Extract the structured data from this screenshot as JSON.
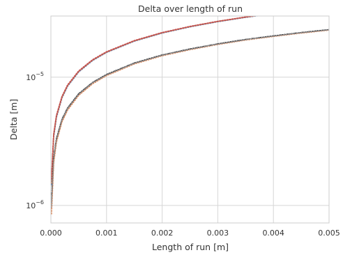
{
  "chart_data": {
    "type": "line",
    "title": "Delta over length of run",
    "xlabel": "Length of run [m]",
    "ylabel": "Delta [m]",
    "xlim": [
      0,
      0.005
    ],
    "ylim": [
      7.3e-07,
      3e-05
    ],
    "yscale": "log",
    "grid": true,
    "x_ticks": [
      {
        "value": 0.0,
        "label": "0.000"
      },
      {
        "value": 0.001,
        "label": "0.001"
      },
      {
        "value": 0.002,
        "label": "0.002"
      },
      {
        "value": 0.003,
        "label": "0.003"
      },
      {
        "value": 0.004,
        "label": "0.004"
      },
      {
        "value": 0.005,
        "label": "0.005"
      }
    ],
    "y_ticks": [
      {
        "value": 1e-06,
        "base": "10",
        "exp": "−6"
      },
      {
        "value": 1e-05,
        "base": "10",
        "exp": "−5"
      }
    ],
    "series": [
      {
        "color": "#222222",
        "style": "solid",
        "x": [
          1e-05,
          5e-05,
          0.0001,
          0.0002,
          0.0003,
          0.0005,
          0.00075,
          0.001,
          0.0015,
          0.002,
          0.0025,
          0.003,
          0.0035,
          0.004,
          0.0045,
          0.005
        ],
        "y": [
          1.55e-06,
          3.55e-06,
          4.99e-06,
          7.04e-06,
          8.61e-06,
          1.11e-05,
          1.36e-05,
          1.57e-05,
          1.92e-05,
          2.22e-05,
          2.48e-05,
          2.72e-05,
          2.94e-05,
          3.14e-05,
          3.33e-05,
          3.51e-05
        ]
      },
      {
        "color": "#4c72b0",
        "style": "dotted",
        "x": [
          1e-05,
          5e-05,
          0.0001,
          0.0002,
          0.0003,
          0.0005,
          0.00075,
          0.001,
          0.0015,
          0.002,
          0.0025,
          0.003,
          0.0035,
          0.004,
          0.0045,
          0.005
        ],
        "y": [
          1.45e-06,
          3.4e-06,
          4.85e-06,
          6.9e-06,
          8.5e-06,
          1.1e-05,
          1.35e-05,
          1.56e-05,
          1.91e-05,
          2.21e-05,
          2.47e-05,
          2.71e-05,
          2.93e-05,
          3.13e-05,
          3.32e-05,
          3.5e-05
        ]
      },
      {
        "color": "#dd8452",
        "style": "dotted",
        "x": [
          1e-05,
          5e-05,
          0.0001,
          0.0002,
          0.0003,
          0.0005,
          0.00075,
          0.001,
          0.0015,
          0.002,
          0.0025,
          0.003,
          0.0035,
          0.004,
          0.0045,
          0.005
        ],
        "y": [
          1.5e-06,
          3.5e-06,
          4.95e-06,
          7e-06,
          8.6e-06,
          1.11e-05,
          1.36e-05,
          1.57e-05,
          1.92e-05,
          2.22e-05,
          2.48e-05,
          2.72e-05,
          2.94e-05,
          3.14e-05,
          3.33e-05,
          3.51e-05
        ]
      },
      {
        "color": "#c44e52",
        "style": "dotted",
        "x": [
          1e-05,
          5e-05,
          0.0001,
          0.0002,
          0.0003,
          0.0005,
          0.00075,
          0.001,
          0.0015,
          0.002,
          0.0025,
          0.003,
          0.0035,
          0.004,
          0.0045,
          0.005
        ],
        "y": [
          1.6e-06,
          3.6e-06,
          5.05e-06,
          7.1e-06,
          8.7e-06,
          1.12e-05,
          1.37e-05,
          1.58e-05,
          1.93e-05,
          2.23e-05,
          2.49e-05,
          2.73e-05,
          2.95e-05,
          3.15e-05,
          3.34e-05,
          3.52e-05
        ]
      },
      {
        "color": "#222222",
        "style": "dashdot",
        "x": [
          1e-05,
          5e-05,
          0.0001,
          0.0002,
          0.0003,
          0.0005,
          0.00075,
          0.001,
          0.0015,
          0.002,
          0.0025,
          0.003,
          0.0035,
          0.004,
          0.0045,
          0.005
        ],
        "y": [
          1.05e-06,
          2.35e-06,
          3.32e-06,
          4.7e-06,
          5.75e-06,
          7.43e-06,
          9.1e-06,
          1.05e-05,
          1.29e-05,
          1.49e-05,
          1.66e-05,
          1.82e-05,
          1.97e-05,
          2.1e-05,
          2.23e-05,
          2.35e-05
        ]
      },
      {
        "color": "#4c72b0",
        "style": "dotted",
        "x": [
          1e-05,
          5e-05,
          0.0001,
          0.0002,
          0.0003,
          0.0005,
          0.00075,
          0.001,
          0.0015,
          0.002,
          0.0025,
          0.003,
          0.0035,
          0.004,
          0.0045,
          0.005
        ],
        "y": [
          9.5e-07,
          2.25e-06,
          3.22e-06,
          4.6e-06,
          5.65e-06,
          7.33e-06,
          9e-06,
          1.04e-05,
          1.28e-05,
          1.48e-05,
          1.65e-05,
          1.81e-05,
          1.96e-05,
          2.09e-05,
          2.22e-05,
          2.34e-05
        ]
      },
      {
        "color": "#dd8452",
        "style": "dotted",
        "x": [
          1e-05,
          5e-05,
          0.0001,
          0.0002,
          0.0003,
          0.0005,
          0.00075,
          0.001,
          0.0015,
          0.002,
          0.0025,
          0.003,
          0.0035,
          0.004,
          0.0045,
          0.005
        ],
        "y": [
          8.6e-07,
          2.15e-06,
          3.12e-06,
          4.5e-06,
          5.55e-06,
          7.23e-06,
          8.9e-06,
          1.03e-05,
          1.27e-05,
          1.47e-05,
          1.64e-05,
          1.8e-05,
          1.95e-05,
          2.08e-05,
          2.21e-05,
          2.33e-05
        ]
      },
      {
        "color": "#8c8c8c",
        "style": "dotted",
        "x": [
          1e-05,
          5e-05,
          0.0001,
          0.0002,
          0.0003,
          0.0005,
          0.00075,
          0.001,
          0.0015,
          0.002,
          0.0025,
          0.003,
          0.0035,
          0.004,
          0.0045,
          0.005
        ],
        "y": [
          1e-06,
          2.3e-06,
          3.27e-06,
          4.65e-06,
          5.7e-06,
          7.38e-06,
          9.05e-06,
          1.045e-05,
          1.285e-05,
          1.485e-05,
          1.655e-05,
          1.815e-05,
          1.965e-05,
          2.095e-05,
          2.225e-05,
          2.345e-05
        ]
      }
    ]
  }
}
